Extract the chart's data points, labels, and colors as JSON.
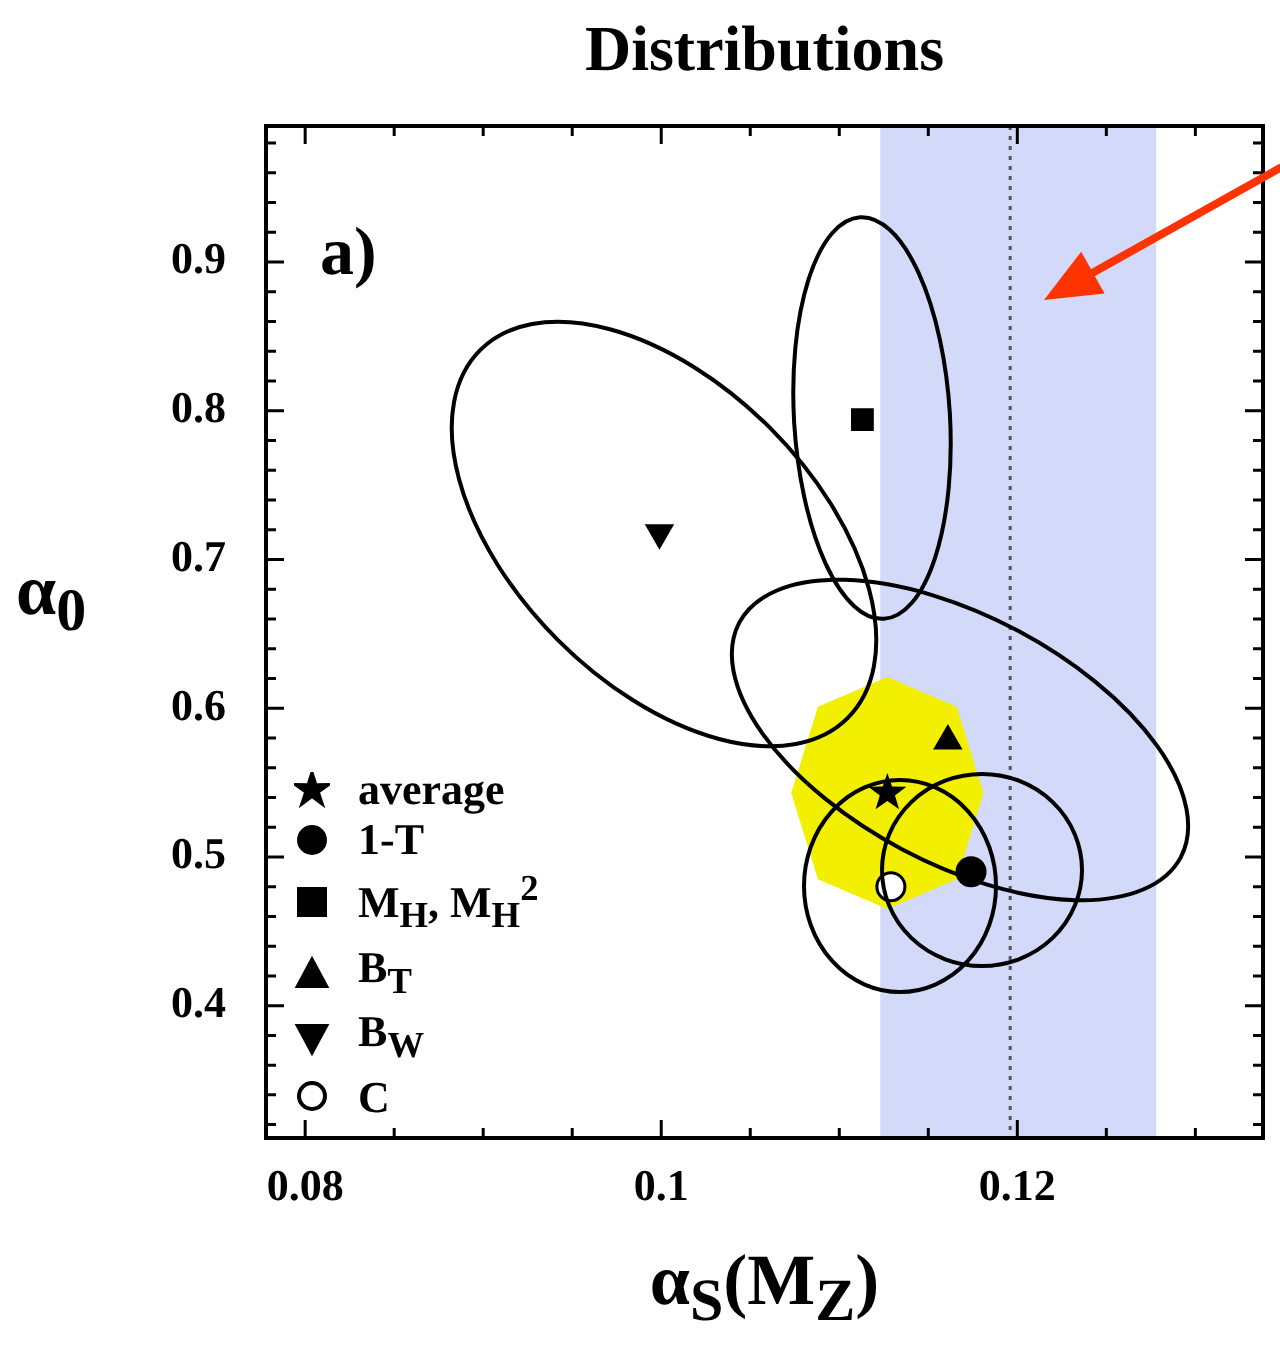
{
  "chart_data": {
    "type": "scatter",
    "title": "Distributions",
    "xlabel": "α$_{S}$(M$_{Z}$)",
    "ylabel": "α$_{0}$",
    "annotations": [
      "a)"
    ],
    "xlim": [
      0.0778,
      0.1338
    ],
    "ylim": [
      0.311,
      0.9915
    ],
    "xticks": [
      0.08,
      {
        "value": 0.085,
        "label": null
      },
      {
        "value": 0.09,
        "label": null
      },
      {
        "value": 0.095,
        "label": null
      },
      0.1,
      {
        "value": 0.105,
        "label": null
      },
      {
        "value": 0.11,
        "label": null
      },
      {
        "value": 0.115,
        "label": null
      },
      0.12,
      {
        "value": 0.125,
        "label": null
      },
      {
        "value": 0.13,
        "label": null
      }
    ],
    "yticks": [
      {
        "value": 0.32,
        "label": null
      },
      {
        "value": 0.34,
        "label": null
      },
      {
        "value": 0.36,
        "label": null
      },
      {
        "value": 0.38,
        "label": null
      },
      0.4,
      {
        "value": 0.42,
        "label": null
      },
      {
        "value": 0.44,
        "label": null
      },
      {
        "value": 0.46,
        "label": null
      },
      {
        "value": 0.48,
        "label": null
      },
      0.5,
      {
        "value": 0.52,
        "label": null
      },
      {
        "value": 0.54,
        "label": null
      },
      {
        "value": 0.56,
        "label": null
      },
      {
        "value": 0.58,
        "label": null
      },
      0.6,
      {
        "value": 0.62,
        "label": null
      },
      {
        "value": 0.64,
        "label": null
      },
      {
        "value": 0.66,
        "label": null
      },
      {
        "value": 0.68,
        "label": null
      },
      0.7,
      {
        "value": 0.72,
        "label": null
      },
      {
        "value": 0.74,
        "label": null
      },
      {
        "value": 0.76,
        "label": null
      },
      {
        "value": 0.78,
        "label": null
      },
      0.8,
      {
        "value": 0.82,
        "label": null
      },
      {
        "value": 0.84,
        "label": null
      },
      {
        "value": 0.86,
        "label": null
      },
      {
        "value": 0.88,
        "label": null
      },
      0.9,
      {
        "value": 0.92,
        "label": null
      },
      {
        "value": 0.94,
        "label": null
      },
      {
        "value": 0.96,
        "label": null
      },
      {
        "value": 0.98,
        "label": null
      }
    ],
    "bands": [
      {
        "axis": "x",
        "from": 0.1123,
        "to": 0.1278,
        "color": "#d3d9f9"
      }
    ],
    "ref_lines": [
      {
        "axis": "x",
        "value": 0.1196,
        "color": "#555555",
        "line_style": "dotted"
      }
    ],
    "legend": "bottom left",
    "series": [
      {
        "type": "area",
        "color": "#f2f000",
        "x": [
          0.1127,
          0.1166,
          0.1181,
          0.1166,
          0.1127,
          0.1088,
          0.1073,
          0.1088,
          0.1127
        ],
        "values": [
          0.621,
          0.601,
          0.543,
          0.485,
          0.465,
          0.485,
          0.543,
          0.601,
          0.621
        ]
      },
      {
        "type": "scatter",
        "name": "average",
        "color": "#000000",
        "marker": "star",
        "x": [
          0.1127
        ],
        "values": [
          0.543
        ]
      },
      {
        "type": "scatter",
        "name": "1-T",
        "color": "#000000",
        "marker": "circle",
        "x": [
          0.1174
        ],
        "values": [
          0.49
        ]
      },
      {
        "type": "scatter",
        "name": "M$_{H}$, M$_{H}$$^{2}$",
        "color": "#000000",
        "marker": "square",
        "x": [
          0.1113
        ],
        "values": [
          0.794
        ]
      },
      {
        "type": "scatter",
        "name": "B$_{T}$",
        "color": "#000000",
        "marker": "triangle",
        "x": [
          0.1161
        ],
        "values": [
          0.578
        ]
      },
      {
        "type": "scatter",
        "name": "B$_{W}$",
        "color": "#000000",
        "marker": "triangle-down",
        "x": [
          0.0999
        ],
        "values": [
          0.718
        ]
      },
      {
        "type": "scatter",
        "name": "C",
        "color": "#000000",
        "marker": "circle-open",
        "x": [
          0.1129
        ],
        "values": [
          0.48
        ]
      }
    ]
  }
}
